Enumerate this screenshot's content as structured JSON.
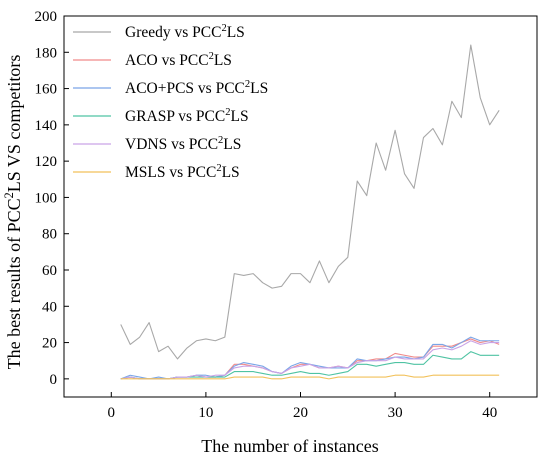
{
  "chart_data": {
    "type": "line",
    "xlabel": "The number of instances",
    "ylabel": {
      "pre": "The best results of PCC",
      "sup": "2",
      "post": "LS VS competitors"
    },
    "xlim": [
      -5,
      45
    ],
    "ylim": [
      -10,
      200
    ],
    "xticks": [
      0,
      10,
      20,
      30,
      40
    ],
    "yticks": [
      0,
      20,
      40,
      60,
      80,
      100,
      120,
      140,
      160,
      180,
      200
    ],
    "grid": false,
    "legend_position": "top-left",
    "x": [
      1,
      2,
      3,
      4,
      5,
      6,
      7,
      8,
      9,
      10,
      11,
      12,
      13,
      14,
      15,
      16,
      17,
      18,
      19,
      20,
      21,
      22,
      23,
      24,
      25,
      26,
      27,
      28,
      29,
      30,
      31,
      32,
      33,
      34,
      35,
      36,
      37,
      38,
      39,
      40,
      41
    ],
    "series": [
      {
        "name": {
          "pre": "Greedy vs PCC",
          "sup": "2",
          "post": "LS"
        },
        "color": "#a8a8a8",
        "values": [
          30,
          19,
          23,
          31,
          15,
          18,
          11,
          17,
          21,
          22,
          21,
          23,
          58,
          57,
          58,
          53,
          50,
          51,
          58,
          58,
          53,
          65,
          53,
          62,
          67,
          109,
          101,
          130,
          115,
          137,
          113,
          105,
          133,
          138,
          129,
          153,
          144,
          184,
          155,
          140,
          148
        ]
      },
      {
        "name": {
          "pre": "ACO vs PCC",
          "sup": "2",
          "post": "LS"
        },
        "color": "#f08a8a",
        "values": [
          0,
          1,
          0,
          0,
          0,
          0,
          1,
          1,
          2,
          1,
          1,
          2,
          8,
          8,
          7,
          6,
          4,
          3,
          6,
          8,
          8,
          6,
          6,
          7,
          6,
          10,
          10,
          11,
          11,
          14,
          13,
          12,
          12,
          18,
          18,
          18,
          20,
          22,
          20,
          21,
          19
        ]
      },
      {
        "name": {
          "pre": "ACO+PCS vs PCC",
          "sup": "2",
          "post": "LS"
        },
        "color": "#7aa5e8",
        "values": [
          0,
          2,
          1,
          0,
          1,
          0,
          1,
          1,
          2,
          2,
          1,
          2,
          7,
          9,
          8,
          7,
          4,
          3,
          7,
          9,
          8,
          7,
          6,
          6,
          6,
          11,
          10,
          10,
          11,
          12,
          12,
          11,
          12,
          19,
          19,
          17,
          20,
          23,
          21,
          21,
          21
        ]
      },
      {
        "name": {
          "pre": "GRASP vs PCC",
          "sup": "2",
          "post": "LS"
        },
        "color": "#4fc3a3",
        "values": [
          0,
          1,
          0,
          0,
          0,
          0,
          1,
          1,
          1,
          1,
          1,
          1,
          4,
          4,
          4,
          3,
          2,
          2,
          3,
          4,
          3,
          3,
          2,
          3,
          4,
          8,
          8,
          7,
          8,
          9,
          9,
          8,
          8,
          13,
          12,
          11,
          11,
          15,
          13,
          13,
          13
        ]
      },
      {
        "name": {
          "pre": "VDNS vs PCC",
          "sup": "2",
          "post": "LS"
        },
        "color": "#c9a3e6",
        "values": [
          0,
          1,
          0,
          0,
          0,
          0,
          1,
          1,
          2,
          1,
          2,
          2,
          6,
          7,
          7,
          6,
          4,
          3,
          6,
          7,
          8,
          6,
          6,
          7,
          6,
          9,
          10,
          10,
          10,
          12,
          11,
          11,
          11,
          16,
          17,
          16,
          18,
          21,
          19,
          20,
          20
        ]
      },
      {
        "name": {
          "pre": "MSLS vs PCC",
          "sup": "2",
          "post": "LS"
        },
        "color": "#f2c15a",
        "values": [
          0,
          0,
          0,
          0,
          0,
          0,
          0,
          0,
          0,
          0,
          0,
          0,
          1,
          1,
          1,
          1,
          0,
          0,
          1,
          1,
          1,
          1,
          0,
          1,
          1,
          1,
          1,
          1,
          1,
          2,
          2,
          1,
          1,
          2,
          2,
          2,
          2,
          2,
          2,
          2,
          2
        ]
      }
    ]
  }
}
